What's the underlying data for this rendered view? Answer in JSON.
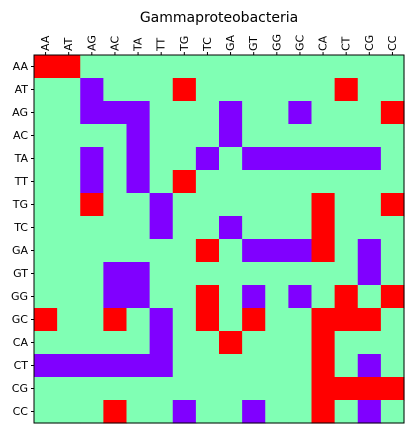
{
  "chart_data": {
    "type": "heatmap",
    "title": "Gammaproteobacteria",
    "x_labels": [
      "AA",
      "AT",
      "AG",
      "AC",
      "TA",
      "TT",
      "TG",
      "TC",
      "GA",
      "GT",
      "GG",
      "GC",
      "CA",
      "CT",
      "CG",
      "CC"
    ],
    "y_labels": [
      "AA",
      "AT",
      "AG",
      "AC",
      "TA",
      "TT",
      "TG",
      "TC",
      "GA",
      "GT",
      "GG",
      "GC",
      "CA",
      "CT",
      "CG",
      "CC"
    ],
    "x_tick_position": "top",
    "colors": {
      "0": "#80ffb4",
      "1": "#8000ff",
      "2": "#ff0000"
    },
    "matrix": [
      [
        2,
        2,
        0,
        0,
        0,
        0,
        0,
        0,
        0,
        0,
        0,
        0,
        0,
        0,
        0,
        0
      ],
      [
        0,
        0,
        1,
        0,
        0,
        0,
        2,
        0,
        0,
        0,
        0,
        0,
        0,
        2,
        0,
        0
      ],
      [
        0,
        0,
        1,
        1,
        1,
        0,
        0,
        0,
        1,
        0,
        0,
        1,
        0,
        0,
        0,
        2
      ],
      [
        0,
        0,
        0,
        0,
        1,
        0,
        0,
        0,
        1,
        0,
        0,
        0,
        0,
        0,
        0,
        0
      ],
      [
        0,
        0,
        1,
        0,
        1,
        0,
        0,
        1,
        0,
        1,
        1,
        1,
        1,
        1,
        1,
        0
      ],
      [
        0,
        0,
        1,
        0,
        1,
        0,
        2,
        0,
        0,
        0,
        0,
        0,
        0,
        0,
        0,
        0
      ],
      [
        0,
        0,
        2,
        0,
        0,
        1,
        0,
        0,
        0,
        0,
        0,
        0,
        2,
        0,
        0,
        2
      ],
      [
        0,
        0,
        0,
        0,
        0,
        1,
        0,
        0,
        1,
        0,
        0,
        0,
        2,
        0,
        0,
        0
      ],
      [
        0,
        0,
        0,
        0,
        0,
        0,
        0,
        2,
        0,
        1,
        1,
        1,
        2,
        0,
        1,
        0
      ],
      [
        0,
        0,
        0,
        1,
        1,
        0,
        0,
        0,
        0,
        0,
        0,
        0,
        0,
        0,
        1,
        0
      ],
      [
        0,
        0,
        0,
        1,
        1,
        0,
        0,
        2,
        0,
        1,
        0,
        1,
        0,
        2,
        0,
        2
      ],
      [
        2,
        0,
        0,
        2,
        0,
        1,
        0,
        2,
        0,
        2,
        0,
        0,
        2,
        2,
        2,
        0
      ],
      [
        0,
        0,
        0,
        0,
        0,
        1,
        0,
        0,
        2,
        0,
        0,
        0,
        2,
        0,
        0,
        0
      ],
      [
        1,
        1,
        1,
        1,
        1,
        1,
        0,
        0,
        0,
        0,
        0,
        0,
        2,
        0,
        1,
        0
      ],
      [
        0,
        0,
        0,
        0,
        0,
        0,
        0,
        0,
        0,
        0,
        0,
        0,
        2,
        2,
        2,
        2
      ],
      [
        0,
        0,
        0,
        2,
        0,
        0,
        1,
        0,
        0,
        1,
        0,
        0,
        2,
        0,
        1,
        0
      ]
    ]
  }
}
